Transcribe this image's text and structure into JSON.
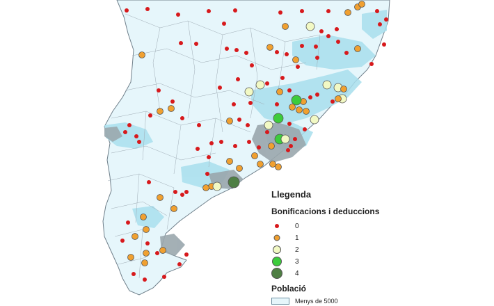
{
  "legend": {
    "title": "Llegenda",
    "subtitle": "Bonificacions i deduccions",
    "classes": [
      {
        "label": "0",
        "color": "#d7191c",
        "size": 6
      },
      {
        "label": "1",
        "color": "#f0a030",
        "size": 9
      },
      {
        "label": "2",
        "color": "#f2f9c4",
        "size": 12
      },
      {
        "label": "3",
        "color": "#3ccc3c",
        "size": 14
      },
      {
        "label": "4",
        "color": "#4f7f44",
        "size": 16
      }
    ],
    "population_title": "Població",
    "population_classes": [
      {
        "label": "Menys de 5000",
        "color": "#e6f6fb"
      }
    ]
  },
  "map_colors": {
    "background": "#ffffff",
    "land": "#e6f6fb",
    "border": "#8a9aa6",
    "population_mid": "#a8dfed",
    "population_high": "#9aa7ad"
  }
}
